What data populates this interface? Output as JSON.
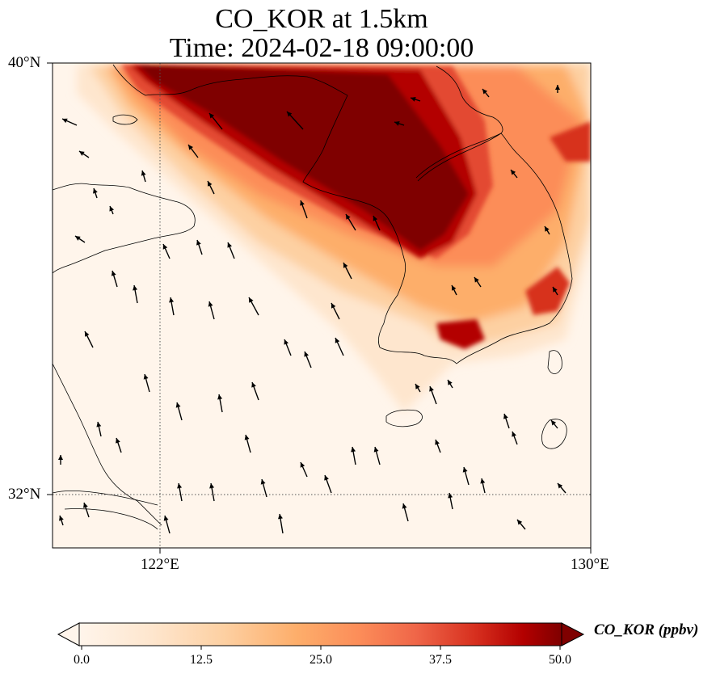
{
  "title_line1": "CO_KOR at 1.5km",
  "title_line2": "Time: 2024-02-18 09:00:00",
  "lat_labels": [
    "40°N",
    "32°N"
  ],
  "lon_labels": [
    "122°E",
    "130°E"
  ],
  "colorbar": {
    "label": "CO_KOR (ppbv)",
    "ticks": [
      "0.0",
      "12.5",
      "25.0",
      "37.5",
      "50.0"
    ],
    "min": 0,
    "max": 50,
    "colors": [
      "#fff5eb",
      "#fee6ce",
      "#fdd0a2",
      "#fdae6b",
      "#fd8d3c",
      "#f16913",
      "#d94801",
      "#a63603",
      "#7f0000"
    ]
  },
  "map_extent": {
    "lon_min": 120,
    "lon_max": 130,
    "lat_min": 31,
    "lat_max": 40
  },
  "gridlines": {
    "lon": [
      122
    ],
    "lat": [
      32
    ]
  },
  "plume": {
    "description_values": "high CO concentration band extending from northwest over Bohai Sea/Liaoning toward Korean Peninsula",
    "max_ppbv": 50
  },
  "wind_vectors_direction": "predominantly from south/southeast",
  "icons": {
    "colorbar_extend_left": "triangle-left",
    "colorbar_extend_right": "triangle-right"
  }
}
